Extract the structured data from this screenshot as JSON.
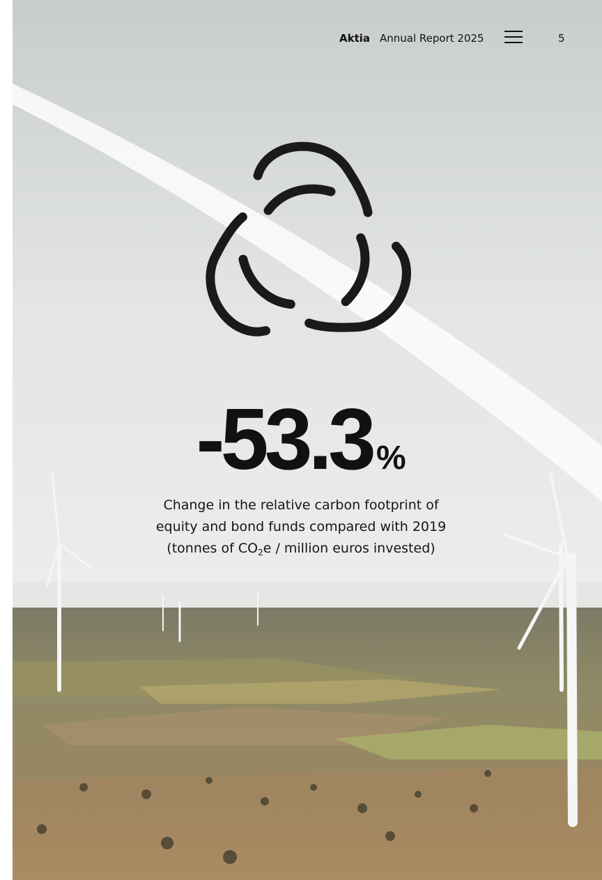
{
  "header": {
    "brand": "Aktia",
    "title": "Annual Report 2025",
    "page": "5"
  },
  "highlight": {
    "figure": "-53.3",
    "unit": "%"
  },
  "caption": {
    "line1": "Change in the relative carbon footprint of",
    "line2": "equity and bond funds compared with 2019",
    "line3_start": "(tonnes of CO",
    "line3_sub": "2",
    "line3_end": "e / million euros invested)"
  }
}
